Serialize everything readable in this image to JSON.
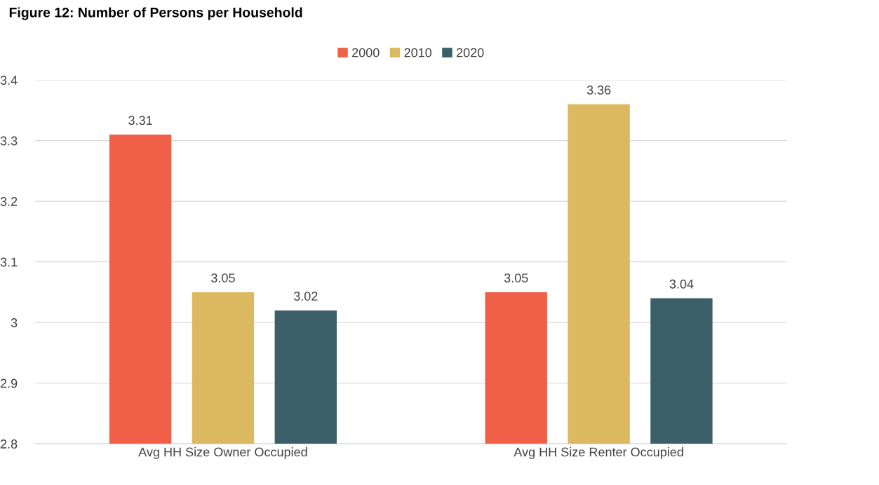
{
  "chart_data": {
    "type": "bar",
    "title": "Figure 12: Number of Persons per Household",
    "categories": [
      "Avg HH Size Owner Occupied",
      "Avg HH Size Renter Occupied"
    ],
    "series": [
      {
        "name": "2000",
        "color": "#f06048",
        "values": [
          3.31,
          3.05
        ]
      },
      {
        "name": "2010",
        "color": "#dcb960",
        "values": [
          3.05,
          3.36
        ]
      },
      {
        "name": "2020",
        "color": "#3b5f68",
        "values": [
          3.02,
          3.04
        ]
      }
    ],
    "ylim": [
      2.8,
      3.4
    ],
    "yticks": [
      2.8,
      2.9,
      3,
      3.1,
      3.2,
      3.3,
      3.4
    ],
    "grid": "y",
    "legend": "top",
    "data_labels": true
  }
}
